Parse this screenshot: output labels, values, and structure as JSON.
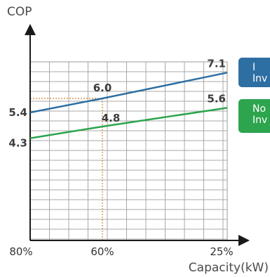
{
  "chart_data": {
    "type": "line",
    "ylabel": "COP",
    "xlabel": "Capacity(kW)",
    "x_ticks": [
      "80%",
      "60%",
      "25%"
    ],
    "x": [
      "80%",
      "60%",
      "25%"
    ],
    "grid": true,
    "legend_placement": "right",
    "series": [
      {
        "name": "I\nInv",
        "color": "#2e6fa3",
        "values": [
          5.4,
          6.0,
          7.1
        ],
        "labels": [
          "5.4",
          "6.0",
          "7.1"
        ]
      },
      {
        "name": "No\nInv",
        "color": "#2da44e",
        "values": [
          4.3,
          4.8,
          5.6
        ],
        "labels": [
          "4.3",
          "4.8",
          "5.6"
        ]
      }
    ],
    "reference_x": "60%",
    "reference_y": 6.0
  }
}
